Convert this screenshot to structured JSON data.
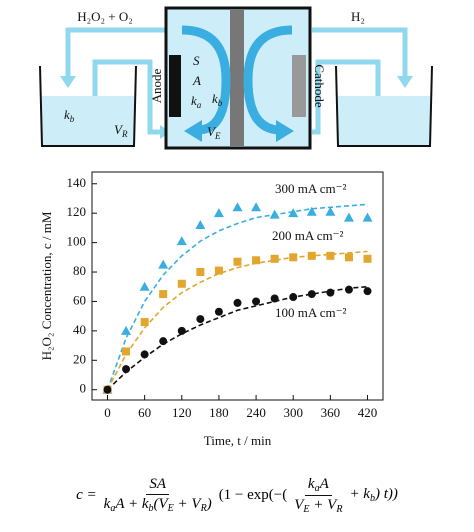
{
  "diagram": {
    "top_left": "H₂O₂ + O₂",
    "top_right": "H₂",
    "anode": "Anode",
    "cathode": "Cathode",
    "cell_labels": [
      "S",
      "A"
    ],
    "cell_ka": {
      "symbol": "k",
      "subscript": "a"
    },
    "cell_kb": {
      "symbol": "k",
      "subscript": "b"
    },
    "cell_ve": {
      "symbol": "V",
      "subscript": "E"
    },
    "tank_kb": {
      "symbol": "k",
      "subscript": "b"
    },
    "tank_vr": {
      "symbol": "V",
      "subscript": "R"
    }
  },
  "chart_data": {
    "type": "scatter",
    "y_label": "H₂O₂ Concentration, c / mM",
    "x_label": "Time, t / min",
    "x": [
      0,
      30,
      60,
      90,
      120,
      150,
      180,
      210,
      240,
      270,
      300,
      330,
      360,
      390,
      420
    ],
    "series": [
      {
        "name": "300 mA cm⁻²",
        "color": "#3aaee0",
        "marker": "triangle",
        "values": [
          0,
          40,
          70,
          85,
          101,
          112,
          120,
          124,
          124,
          119,
          120,
          121,
          121,
          117,
          117
        ]
      },
      {
        "name": "200 mA cm⁻²",
        "color": "#e2a52e",
        "marker": "square",
        "values": [
          0,
          26,
          46,
          65,
          72,
          80,
          81,
          87,
          88,
          89,
          90,
          91,
          91,
          90,
          89
        ]
      },
      {
        "name": "100 mA cm⁻²",
        "color": "#111111",
        "marker": "circle",
        "values": [
          0,
          14,
          24,
          33,
          40,
          48,
          53,
          59,
          60,
          62,
          63,
          65,
          66,
          68,
          67
        ]
      }
    ],
    "fits": [
      {
        "color": "#3aaee0",
        "values": [
          0,
          35,
          60,
          78,
          91,
          101,
          108,
          113,
          117,
          119,
          121,
          123,
          124,
          125,
          126
        ]
      },
      {
        "color": "#e2a52e",
        "values": [
          0,
          24,
          42,
          56,
          66,
          73,
          79,
          83,
          86,
          88,
          90,
          91,
          92,
          93,
          94
        ]
      },
      {
        "color": "#111111",
        "values": [
          0,
          12,
          22,
          31,
          38,
          44,
          49,
          54,
          57,
          60,
          63,
          65,
          67,
          69,
          70
        ]
      }
    ],
    "xlim": [
      -25,
      445
    ],
    "ylim": [
      -7,
      148
    ],
    "xticks": [
      0,
      60,
      120,
      180,
      240,
      300,
      360,
      420
    ],
    "yticks": [
      0,
      20,
      40,
      60,
      80,
      100,
      120,
      140
    ]
  },
  "equation": {
    "lhs": "c =",
    "frac1_num": "SA",
    "frac1_den": [
      "k",
      "a",
      "A + k",
      "b",
      "(V",
      "E",
      " + V",
      "R",
      ")"
    ],
    "mid": "(1 − exp(−(",
    "frac2_num": [
      "k",
      "a",
      "A"
    ],
    "frac2_den": [
      "V",
      "E",
      " + V",
      "R"
    ],
    "end": [
      "+ k",
      "b",
      ") t))"
    ]
  }
}
